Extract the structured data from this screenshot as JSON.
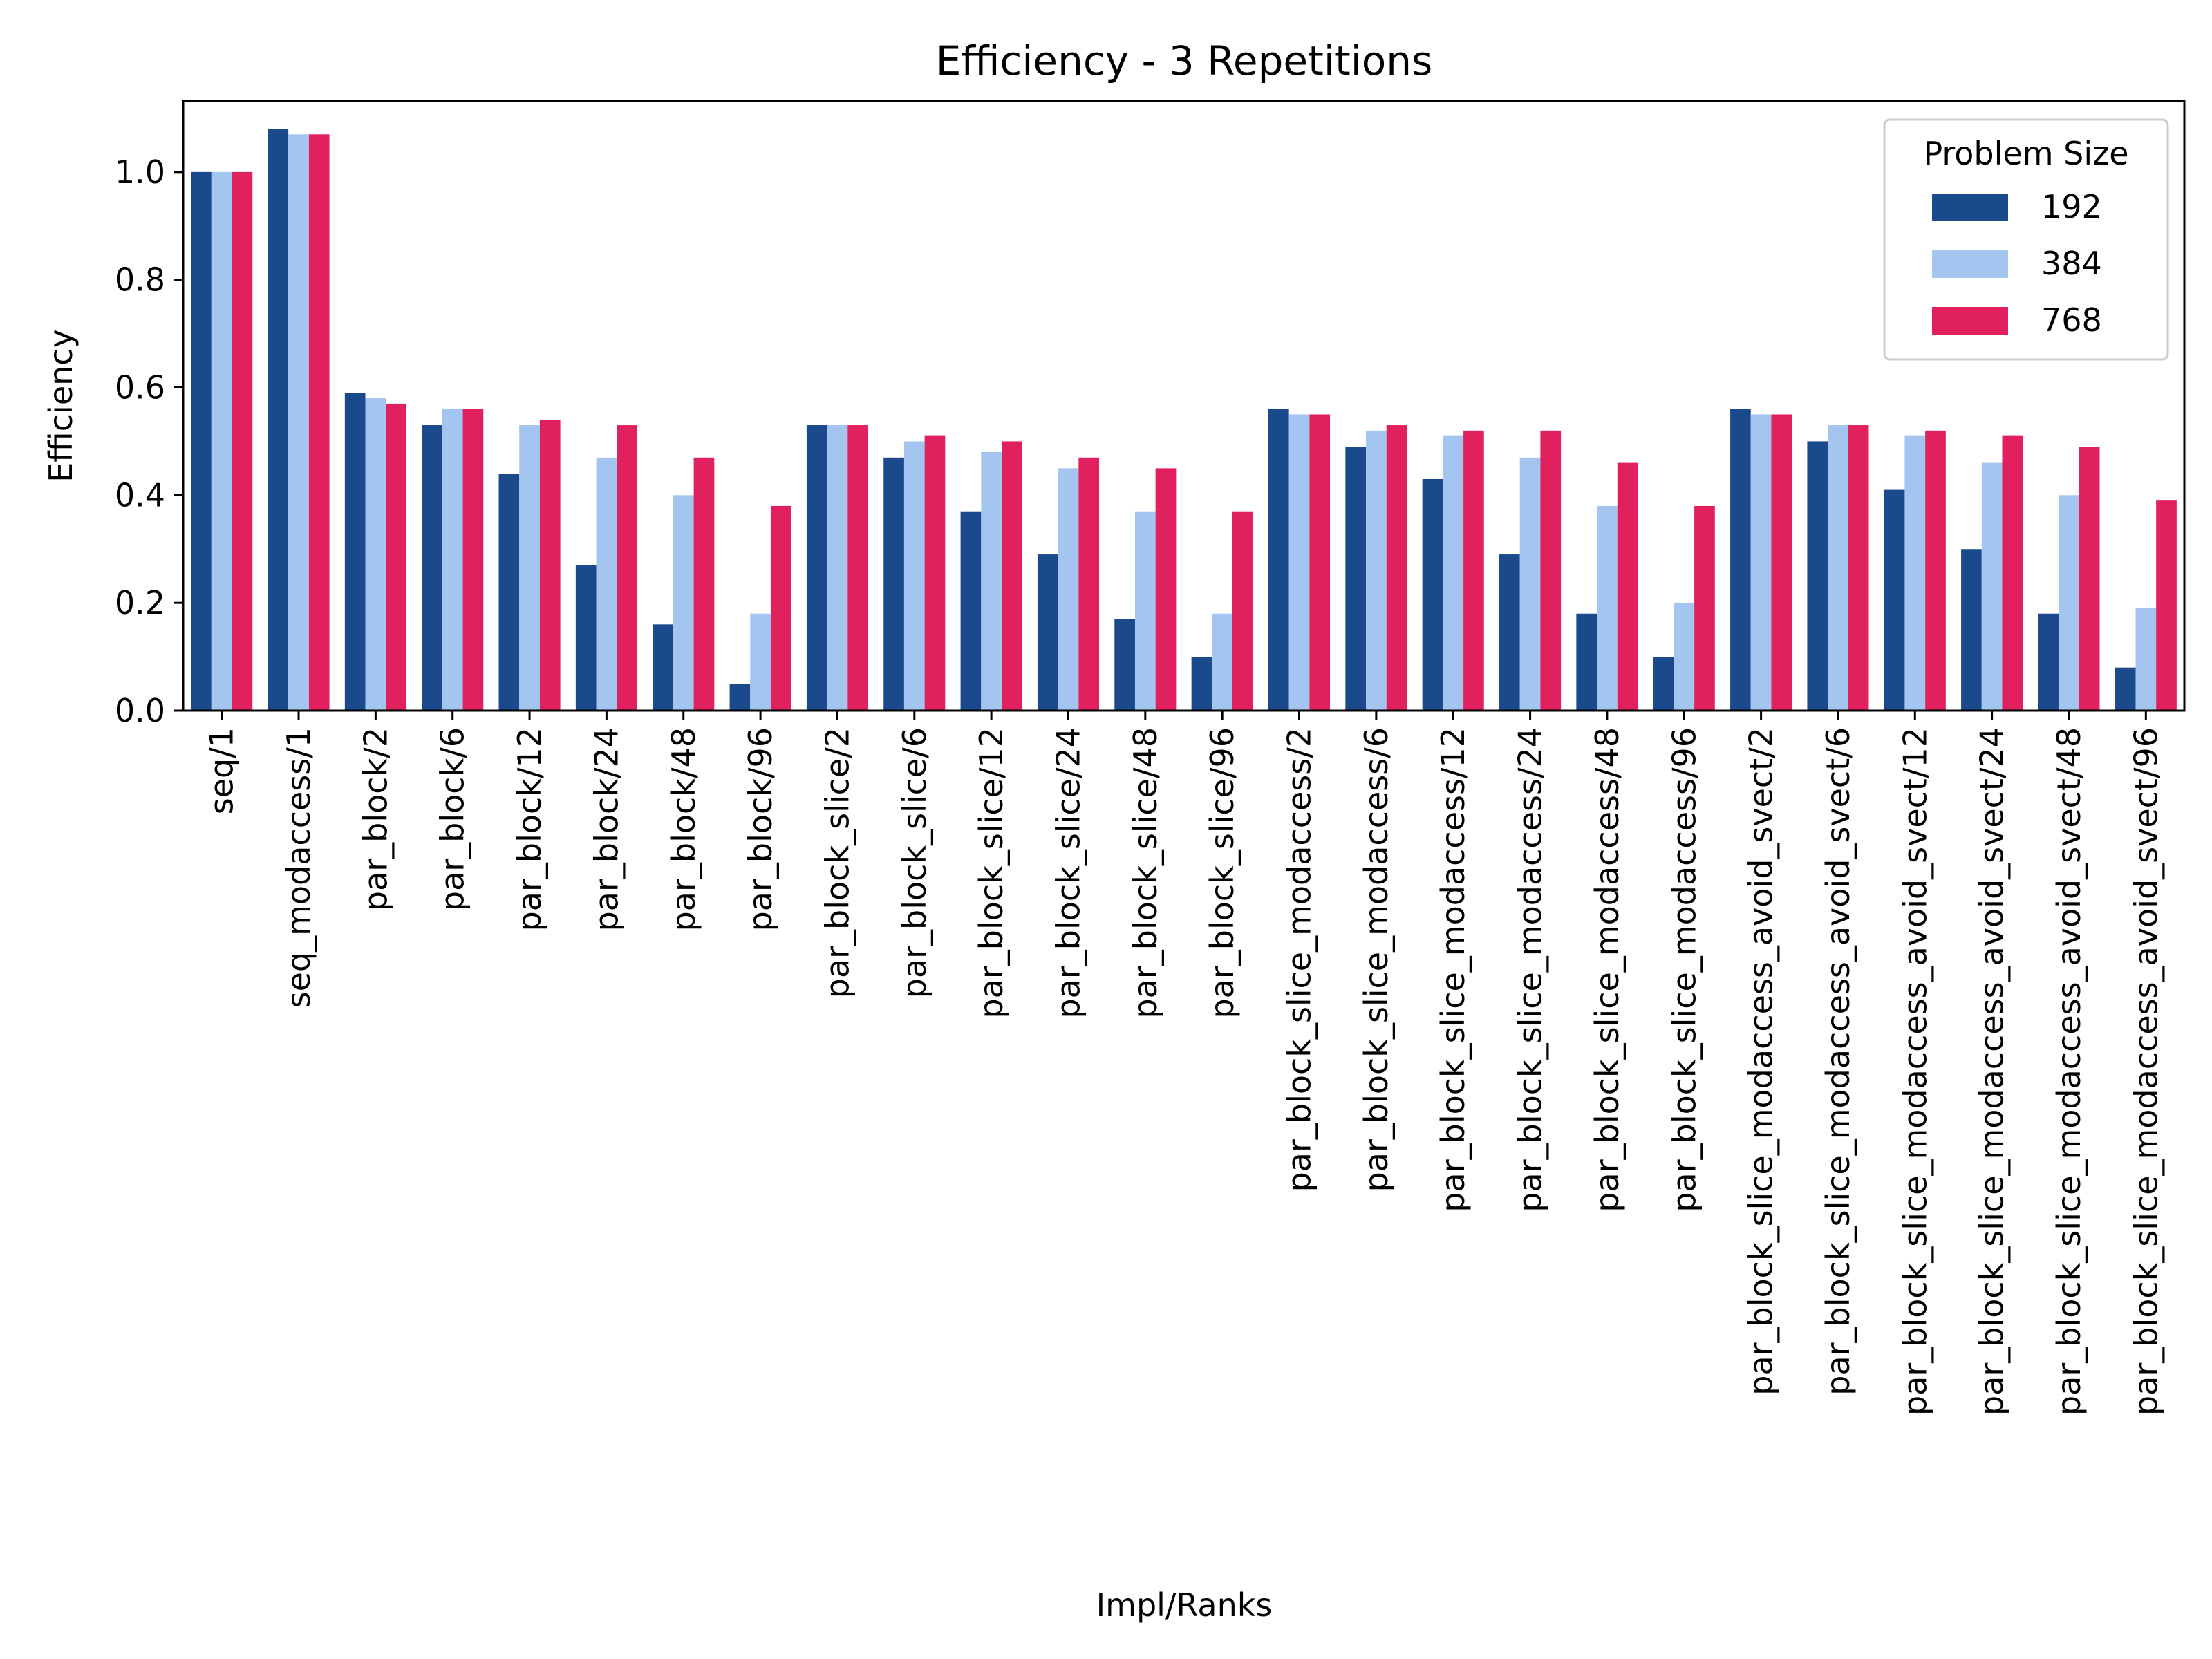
{
  "chart_data": {
    "type": "bar",
    "title": "Efficiency - 3 Repetitions",
    "xlabel": "Impl/Ranks",
    "ylabel": "Efficiency",
    "ylim": [
      0,
      1.132
    ],
    "yticks": [
      "0.0",
      "0.2",
      "0.4",
      "0.6",
      "0.8",
      "1.0"
    ],
    "legend": {
      "title": "Problem Size",
      "placement": "top-right"
    },
    "categories": [
      "seq/1",
      "seq_modaccess/1",
      "par_block/2",
      "par_block/6",
      "par_block/12",
      "par_block/24",
      "par_block/48",
      "par_block/96",
      "par_block_slice/2",
      "par_block_slice/6",
      "par_block_slice/12",
      "par_block_slice/24",
      "par_block_slice/48",
      "par_block_slice/96",
      "par_block_slice_modaccess/2",
      "par_block_slice_modaccess/6",
      "par_block_slice_modaccess/12",
      "par_block_slice_modaccess/24",
      "par_block_slice_modaccess/48",
      "par_block_slice_modaccess/96",
      "par_block_slice_modaccess_avoid_svect/2",
      "par_block_slice_modaccess_avoid_svect/6",
      "par_block_slice_modaccess_avoid_svect/12",
      "par_block_slice_modaccess_avoid_svect/24",
      "par_block_slice_modaccess_avoid_svect/48",
      "par_block_slice_modaccess_avoid_svect/96"
    ],
    "series": [
      {
        "name": "192",
        "color": "#1a4a8c",
        "values": [
          1.0,
          1.08,
          0.59,
          0.53,
          0.44,
          0.27,
          0.16,
          0.05,
          0.53,
          0.47,
          0.37,
          0.29,
          0.17,
          0.1,
          0.56,
          0.49,
          0.43,
          0.29,
          0.18,
          0.1,
          0.56,
          0.5,
          0.41,
          0.3,
          0.18,
          0.08
        ]
      },
      {
        "name": "384",
        "color": "#a3c5f0",
        "values": [
          1.0,
          1.07,
          0.58,
          0.56,
          0.53,
          0.47,
          0.4,
          0.18,
          0.53,
          0.5,
          0.48,
          0.45,
          0.37,
          0.18,
          0.55,
          0.52,
          0.51,
          0.47,
          0.38,
          0.2,
          0.55,
          0.53,
          0.51,
          0.46,
          0.4,
          0.19
        ]
      },
      {
        "name": "768",
        "color": "#e0215e",
        "values": [
          1.0,
          1.07,
          0.57,
          0.56,
          0.54,
          0.53,
          0.47,
          0.38,
          0.53,
          0.51,
          0.5,
          0.47,
          0.45,
          0.37,
          0.55,
          0.53,
          0.52,
          0.52,
          0.46,
          0.38,
          0.55,
          0.53,
          0.52,
          0.51,
          0.49,
          0.39
        ]
      }
    ]
  }
}
